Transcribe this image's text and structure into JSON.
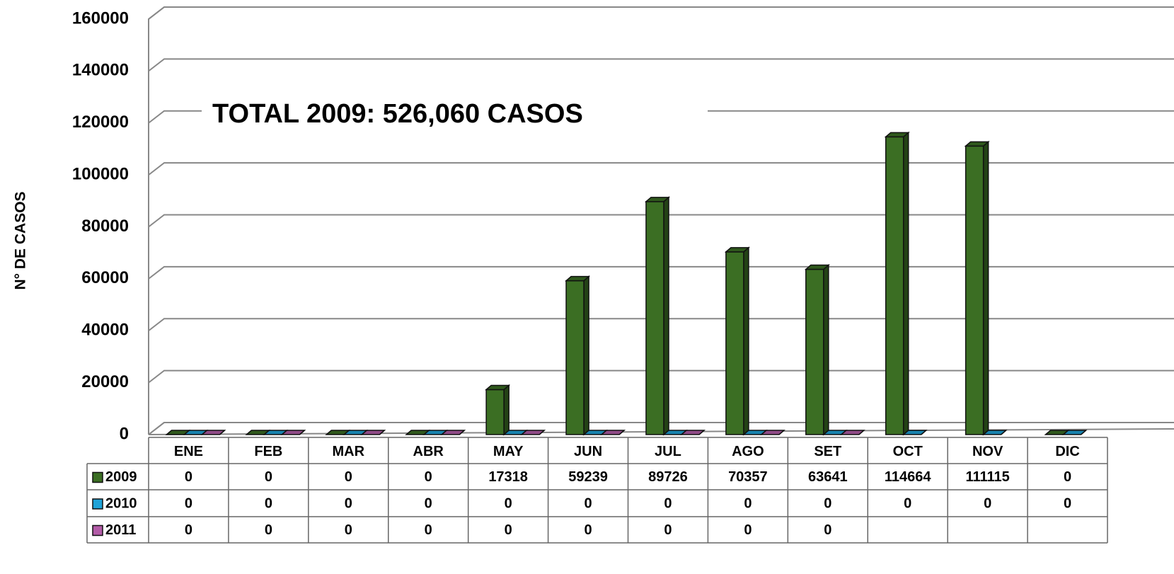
{
  "chart_data": {
    "type": "bar3d",
    "annotation": "TOTAL 2009: 526,060 CASOS",
    "y_label": "N° DE CASOS",
    "categories": [
      "ENE",
      "FEB",
      "MAR",
      "ABR",
      "MAY",
      "JUN",
      "JUL",
      "AGO",
      "SET",
      "OCT",
      "NOV",
      "DIC"
    ],
    "series": [
      {
        "name": "2009",
        "color": "#3b6e23",
        "values": [
          0,
          0,
          0,
          0,
          17318,
          59239,
          89726,
          70357,
          63641,
          114664,
          111115,
          0
        ]
      },
      {
        "name": "2010",
        "color": "#1ea3d8",
        "values": [
          0,
          0,
          0,
          0,
          0,
          0,
          0,
          0,
          0,
          0,
          0,
          0
        ]
      },
      {
        "name": "2011",
        "color": "#b35ca8",
        "values": [
          0,
          0,
          0,
          0,
          0,
          0,
          0,
          0,
          0,
          null,
          null,
          null
        ]
      }
    ],
    "ylim": [
      0,
      160000
    ],
    "yticks": [
      0,
      20000,
      40000,
      60000,
      80000,
      100000,
      120000,
      140000,
      160000
    ],
    "grid": true
  }
}
